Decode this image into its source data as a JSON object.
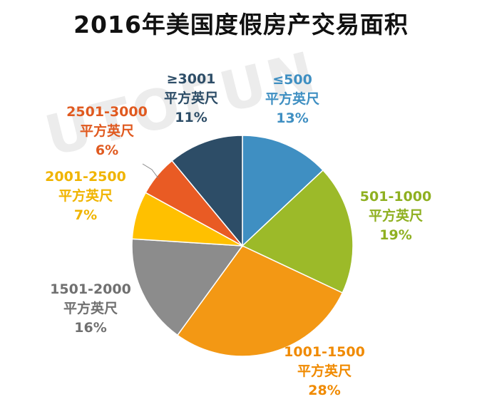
{
  "title": "2016年美国度假房产交易面积",
  "watermark": "UTOFUN",
  "chart_data": {
    "type": "pie",
    "title": "2016年美国度假房产交易面积",
    "unit": "平方英尺",
    "slices": [
      {
        "label": "≤500",
        "value": 13,
        "pct": "13%",
        "color": "#3f8fc2"
      },
      {
        "label": "501-1000",
        "value": 19,
        "pct": "19%",
        "color": "#9cba29"
      },
      {
        "label": "1001-1500",
        "value": 28,
        "pct": "28%",
        "color": "#f39814"
      },
      {
        "label": "1501-2000",
        "value": 16,
        "pct": "16%",
        "color": "#8c8c8c"
      },
      {
        "label": "2001-2500",
        "value": 7,
        "pct": "7%",
        "color": "#ffc000"
      },
      {
        "label": "2501-3000",
        "value": 6,
        "pct": "6%",
        "color": "#e95b24"
      },
      {
        "label": "≥3001",
        "value": 11,
        "pct": "11%",
        "color": "#2d4d67"
      }
    ]
  }
}
